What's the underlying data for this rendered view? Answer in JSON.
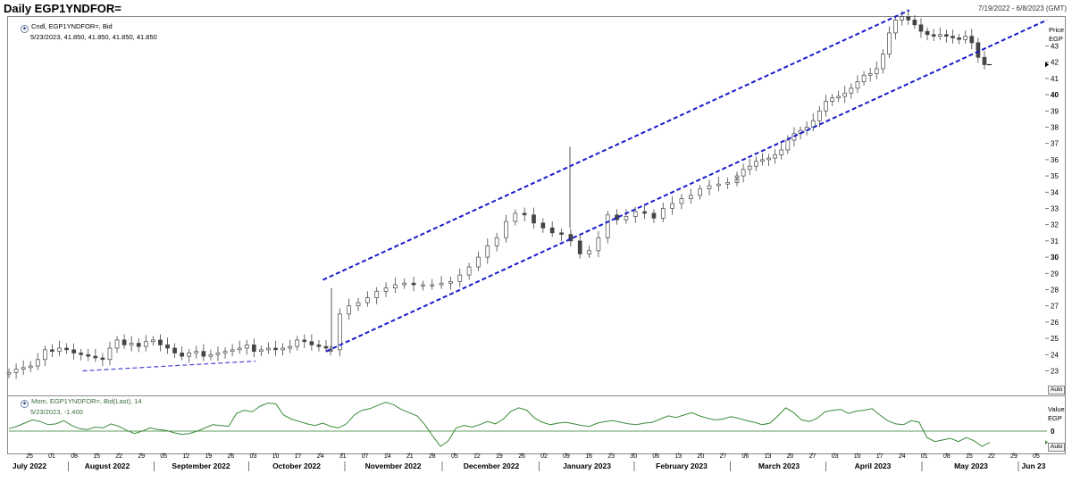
{
  "header": {
    "title": "Daily EGP1YNDFOR=",
    "date_range": "7/19/2022 - 6/8/2023 (GMT)"
  },
  "price_panel": {
    "legend_name": "Cndl, EGP1YNDFOR=, Bid",
    "legend_values": "5/23/2023, 41.850, 41.850, 41.850, 41.850",
    "axis_title": "Price",
    "axis_unit": "EGP",
    "auto_label": "Auto"
  },
  "momentum_panel": {
    "legend_name": "Mom, EGP1YNDFOR=, Bid(Last), 14",
    "legend_values": "5/23/2023, -1.400",
    "axis_title": "Value",
    "axis_unit": "EGP",
    "auto_label": "Auto"
  },
  "colors": {
    "trend_lines": "#1a1acc",
    "momentum_line": "#3a8a3a",
    "zero_line": "#2a7a2a",
    "candle": "#444444"
  },
  "chart_data": [
    {
      "type": "candlestick",
      "ylim": [
        22,
        45
      ],
      "yticks": [
        23,
        24,
        25,
        26,
        27,
        28,
        29,
        30,
        31,
        32,
        33,
        34,
        35,
        36,
        37,
        38,
        39,
        40,
        41,
        42,
        43
      ],
      "ytick_labels": [
        "23",
        "24",
        "25",
        "26",
        "27",
        "28",
        "29",
        "30",
        "31",
        "32",
        "33",
        "34",
        "35",
        "36",
        "37",
        "38",
        "39",
        "40",
        "41",
        "42",
        "43"
      ],
      "last_value": 41.85,
      "close_series_sampled": [
        [
          22.9,
          23.1,
          23.2,
          23.3,
          23.7,
          24.3,
          24.2,
          24.4,
          24.3,
          24.1,
          24.0,
          23.9,
          23.8,
          23.7,
          24.4,
          24.9,
          24.6,
          24.7,
          24.5,
          24.8,
          24.9,
          24.6,
          24.4,
          24.1,
          23.9,
          24.1,
          24.2,
          23.9,
          24.0,
          24.1,
          24.2,
          24.3,
          24.4,
          24.6,
          24.2,
          24.3,
          24.4,
          24.3,
          24.4,
          24.5,
          24.9,
          24.8,
          24.6,
          24.5,
          24.4
        ],
        [
          24.3,
          26.5,
          27.0,
          27.2,
          27.5,
          27.9,
          28.1,
          28.3,
          28.4,
          28.3,
          28.3,
          28.3,
          28.4,
          28.5,
          28.9,
          29.4,
          30.0,
          30.7,
          31.2,
          32.2,
          32.7,
          32.6,
          32.1,
          31.8,
          31.5,
          31.4,
          31.0,
          30.2,
          30.4,
          31.2,
          32.6,
          32.3,
          32.5,
          32.8,
          32.7,
          32.4,
          33.0,
          33.3,
          33.6,
          33.8,
          34.2,
          34.4,
          34.5,
          34.6,
          34.8
        ],
        [
          35.0,
          35.4,
          35.6,
          35.9,
          36.0,
          36.1,
          36.3,
          36.6,
          37.2,
          37.6,
          37.8,
          38.0,
          38.4,
          39.0,
          39.6,
          39.8,
          39.9,
          40.1,
          40.4,
          40.8,
          41.2,
          41.3,
          41.6,
          42.5,
          43.8,
          44.6,
          44.8,
          44.6,
          44.3,
          43.9,
          43.7,
          43.6,
          43.7,
          43.6,
          43.5,
          43.4,
          43.6,
          43.2,
          42.3,
          41.85
        ]
      ],
      "trend_channel": {
        "upper": [
          [
            "2022-10-25",
            28.6
          ],
          [
            "2023-04-26",
            45.2
          ]
        ],
        "lower": [
          [
            "2022-10-26",
            24.2
          ],
          [
            "2023-06-08",
            44.6
          ]
        ],
        "support": [
          [
            "2022-08-11",
            23.0
          ],
          [
            "2022-10-04",
            23.6
          ]
        ]
      }
    },
    {
      "type": "line",
      "title": "Mom, EGP1YNDFOR=, Bid(Last), 14",
      "ytick_labels": [
        "0"
      ],
      "last_value": -1.4,
      "series": [
        {
          "name": "Mom",
          "values": [
            0.3,
            0.6,
            1.0,
            1.4,
            1.2,
            0.8,
            0.9,
            1.3,
            0.7,
            0.3,
            0.2,
            0.5,
            0.4,
            0.9,
            0.6,
            0.1,
            -0.3,
            0.0,
            0.4,
            0.2,
            0.1,
            -0.2,
            -0.4,
            -0.3,
            0.0,
            0.4,
            0.8,
            0.7,
            0.6,
            2.2,
            2.6,
            2.4,
            3.1,
            3.5,
            3.4,
            2.0,
            1.5,
            1.2,
            0.9,
            0.7,
            1.0,
            0.6,
            0.4,
            0.9,
            2.0,
            2.6,
            2.8,
            3.2,
            3.6,
            3.3,
            2.7,
            2.3,
            1.9,
            0.8,
            -0.6,
            -1.9,
            -1.2,
            0.4,
            0.7,
            0.5,
            0.8,
            1.2,
            0.9,
            1.5,
            2.5,
            2.9,
            2.6,
            1.6,
            1.1,
            0.8,
            1.0,
            1.1,
            0.9,
            0.7,
            0.6,
            1.0,
            1.2,
            1.3,
            1.1,
            0.9,
            0.8,
            1.0,
            1.1,
            1.5,
            1.9,
            1.7,
            2.0,
            2.3,
            1.9,
            1.6,
            1.4,
            1.5,
            1.8,
            1.6,
            1.3,
            1.1,
            0.8,
            1.0,
            1.9,
            2.9,
            2.3,
            1.4,
            1.2,
            1.6,
            2.4,
            2.6,
            2.7,
            2.2,
            2.5,
            2.6,
            2.8,
            2.0,
            1.3,
            0.9,
            0.8,
            1.3,
            1.1,
            -0.8,
            -1.3,
            -1.1,
            -0.9,
            -1.3,
            -0.8,
            -1.2,
            -1.9,
            -1.4
          ]
        }
      ]
    }
  ],
  "x_axis": {
    "days": [
      "25",
      "01",
      "08",
      "15",
      "22",
      "29",
      "05",
      "12",
      "19",
      "26",
      "03",
      "10",
      "17",
      "24",
      "31",
      "07",
      "14",
      "21",
      "28",
      "05",
      "12",
      "19",
      "26",
      "02",
      "09",
      "16",
      "23",
      "30",
      "06",
      "13",
      "20",
      "27",
      "06",
      "13",
      "20",
      "27",
      "03",
      "10",
      "17",
      "24",
      "01",
      "08",
      "15",
      "22",
      "29",
      "05"
    ],
    "months": [
      "July 2022",
      "August 2022",
      "September 2022",
      "October 2022",
      "November 2022",
      "December 2022",
      "January 2023",
      "February 2023",
      "March 2023",
      "April 2023",
      "May 2023",
      "Jun 23"
    ]
  }
}
